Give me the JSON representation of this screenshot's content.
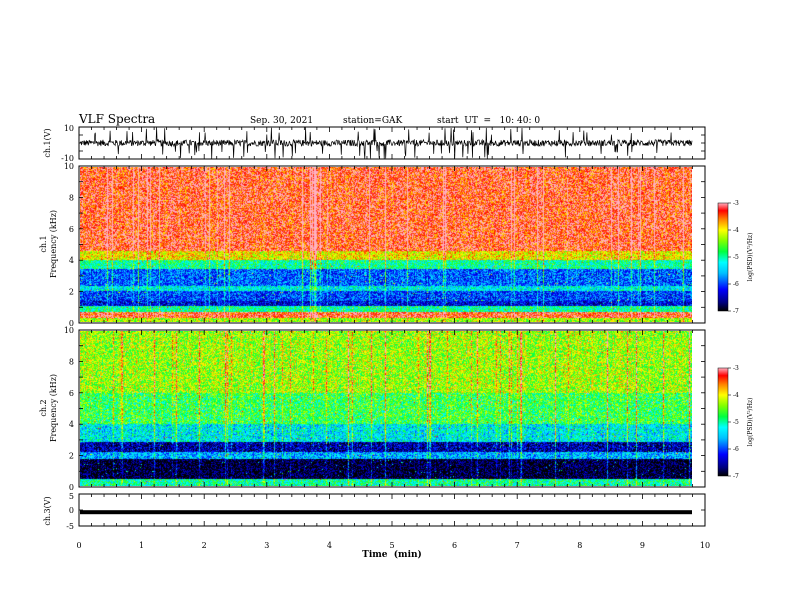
{
  "header": {
    "title": "VLF Spectra",
    "date": "Sep. 30, 2021",
    "station": "station=GAK",
    "start": "start  UT  =   10: 40: 0"
  },
  "chart_data": [
    {
      "type": "line",
      "panel": "ch1-waveform",
      "ylabel": "ch.1(V)",
      "ylim": [
        -10,
        10
      ],
      "yticks": [
        "10",
        "-10"
      ],
      "baseline_v": 0,
      "color": "#000000"
    },
    {
      "type": "heatmap",
      "panel": "ch1-spectrogram",
      "ylabel": "ch.1\nFrequency  (kHz)",
      "ylabel_line1": "ch.1",
      "ylabel_line2": "Frequency  (kHz)",
      "ylim": [
        0,
        10
      ],
      "yticks": [
        "0",
        "2",
        "4",
        "6",
        "8",
        "10"
      ],
      "xlim": [
        0,
        9.8
      ],
      "bands_khz_log_psd": [
        {
          "from": 0,
          "to": 0.25,
          "value": -4.3
        },
        {
          "from": 0.25,
          "to": 0.6,
          "value": -3.3
        },
        {
          "from": 0.6,
          "to": 1.0,
          "value": -5.0
        },
        {
          "from": 1.0,
          "to": 1.3,
          "value": -6.3
        },
        {
          "from": 1.3,
          "to": 2.0,
          "value": -6.0
        },
        {
          "from": 2.0,
          "to": 2.3,
          "value": -5.3
        },
        {
          "from": 2.3,
          "to": 3.4,
          "value": -5.9
        },
        {
          "from": 3.4,
          "to": 4.0,
          "value": -5.0
        },
        {
          "from": 4.0,
          "to": 4.6,
          "value": -4.0
        },
        {
          "from": 4.6,
          "to": 10.0,
          "value": -3.3
        }
      ],
      "colorbar": {
        "label": "log(PSD)(V²/Hz)",
        "range": [
          -7,
          -3
        ],
        "ticks": [
          "-3",
          "-4",
          "-5",
          "-6",
          "-7"
        ]
      }
    },
    {
      "type": "heatmap",
      "panel": "ch2-spectrogram",
      "ylabel": "ch.2\nFrequency  (kHz)",
      "ylabel_line1": "ch.2",
      "ylabel_line2": "Frequency  (kHz)",
      "ylim": [
        0,
        10
      ],
      "yticks": [
        "0",
        "2",
        "4",
        "6",
        "8",
        "10"
      ],
      "xlim": [
        0,
        9.8
      ],
      "bands_khz_log_psd": [
        {
          "from": 0,
          "to": 0.4,
          "value": -5.0
        },
        {
          "from": 0.4,
          "to": 1.7,
          "value": -6.9
        },
        {
          "from": 1.7,
          "to": 2.2,
          "value": -5.6
        },
        {
          "from": 2.2,
          "to": 2.8,
          "value": -6.5
        },
        {
          "from": 2.8,
          "to": 4.0,
          "value": -5.3
        },
        {
          "from": 4.0,
          "to": 6.0,
          "value": -4.7
        },
        {
          "from": 6.0,
          "to": 10.0,
          "value": -4.3
        }
      ],
      "colorbar": {
        "label": "log(PSD)(V²/Hz)",
        "range": [
          -7,
          -3
        ],
        "ticks": [
          "-3",
          "-4",
          "-5",
          "-6",
          "-7"
        ]
      }
    },
    {
      "type": "line",
      "panel": "ch3-waveform",
      "ylabel": "ch.3(V)",
      "ylim": [
        -5,
        5
      ],
      "yticks": [
        "5",
        "0",
        "-5"
      ],
      "level_v": -0.7,
      "color": "#000000"
    }
  ],
  "x_axis": {
    "label": "Time  (min)",
    "range": [
      0,
      10
    ],
    "ticks": [
      "0",
      "1",
      "2",
      "3",
      "4",
      "5",
      "6",
      "7",
      "8",
      "9",
      "10"
    ]
  }
}
